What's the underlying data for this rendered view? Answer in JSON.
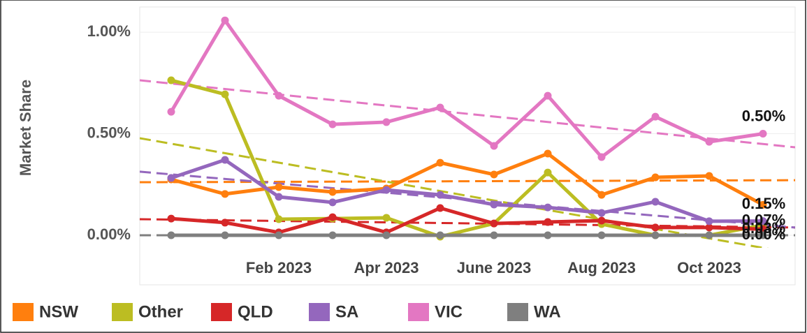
{
  "chart_data": {
    "type": "line",
    "y_label": "Market Share",
    "categories": [
      null,
      null,
      "Feb 2023",
      null,
      "Apr 2023",
      null,
      "June 2023",
      null,
      "Aug 2023",
      null,
      "Oct 2023",
      null
    ],
    "ylim": [
      -0.062,
      1.124
    ],
    "yticks": [
      {
        "value": 0,
        "label": "0.00%"
      },
      {
        "value": 0.5,
        "label": "0.50%"
      },
      {
        "value": 1,
        "label": "1.00%"
      }
    ],
    "grid": true,
    "legend": "bottom",
    "series": [
      {
        "name": "NSW",
        "color": "#ff7f0e",
        "values": [
          0.275,
          0.203,
          0.237,
          0.213,
          0.23,
          0.357,
          0.299,
          0.402,
          0.199,
          0.285,
          0.292,
          0.15
        ],
        "trend": [
          0.261,
          0.271
        ],
        "end_label": "0.15%"
      },
      {
        "name": "Other",
        "color": "#bcbd22",
        "values": [
          0.763,
          0.694,
          0.079,
          0.082,
          0.086,
          -0.007,
          0.058,
          0.309,
          0.055,
          0,
          0,
          0.05
        ],
        "trend": [
          0.478,
          -0.09
        ]
      },
      {
        "name": "QLD",
        "color": "#d62728",
        "values": [
          0.082,
          0.062,
          0.014,
          0.089,
          0.014,
          0.134,
          0.058,
          0.065,
          0.072,
          0.038,
          0.038,
          0.03
        ],
        "trend": [
          0.079,
          0.038
        ],
        "end_label": "0.03%"
      },
      {
        "name": "SA",
        "color": "#9467bd",
        "values": [
          0.282,
          0.371,
          0.189,
          0.162,
          0.223,
          0.199,
          0.151,
          0.137,
          0.11,
          0.165,
          0.069,
          0.07
        ],
        "trend": [
          0.313,
          0.038
        ],
        "end_label": "0.07%"
      },
      {
        "name": "VIC",
        "color": "#e377c2",
        "values": [
          0.608,
          1.058,
          0.687,
          0.546,
          0.557,
          0.629,
          0.44,
          0.687,
          0.385,
          0.584,
          0.46,
          0.5
        ],
        "trend": [
          0.763,
          0.433
        ],
        "end_label": "0.50%"
      },
      {
        "name": "WA",
        "color": "#7f7f7f",
        "values": [
          0,
          0,
          0,
          0,
          0,
          0,
          0,
          0,
          0,
          0,
          0,
          0
        ],
        "trend": [
          0,
          0
        ],
        "end_label": "0.00%"
      }
    ]
  }
}
